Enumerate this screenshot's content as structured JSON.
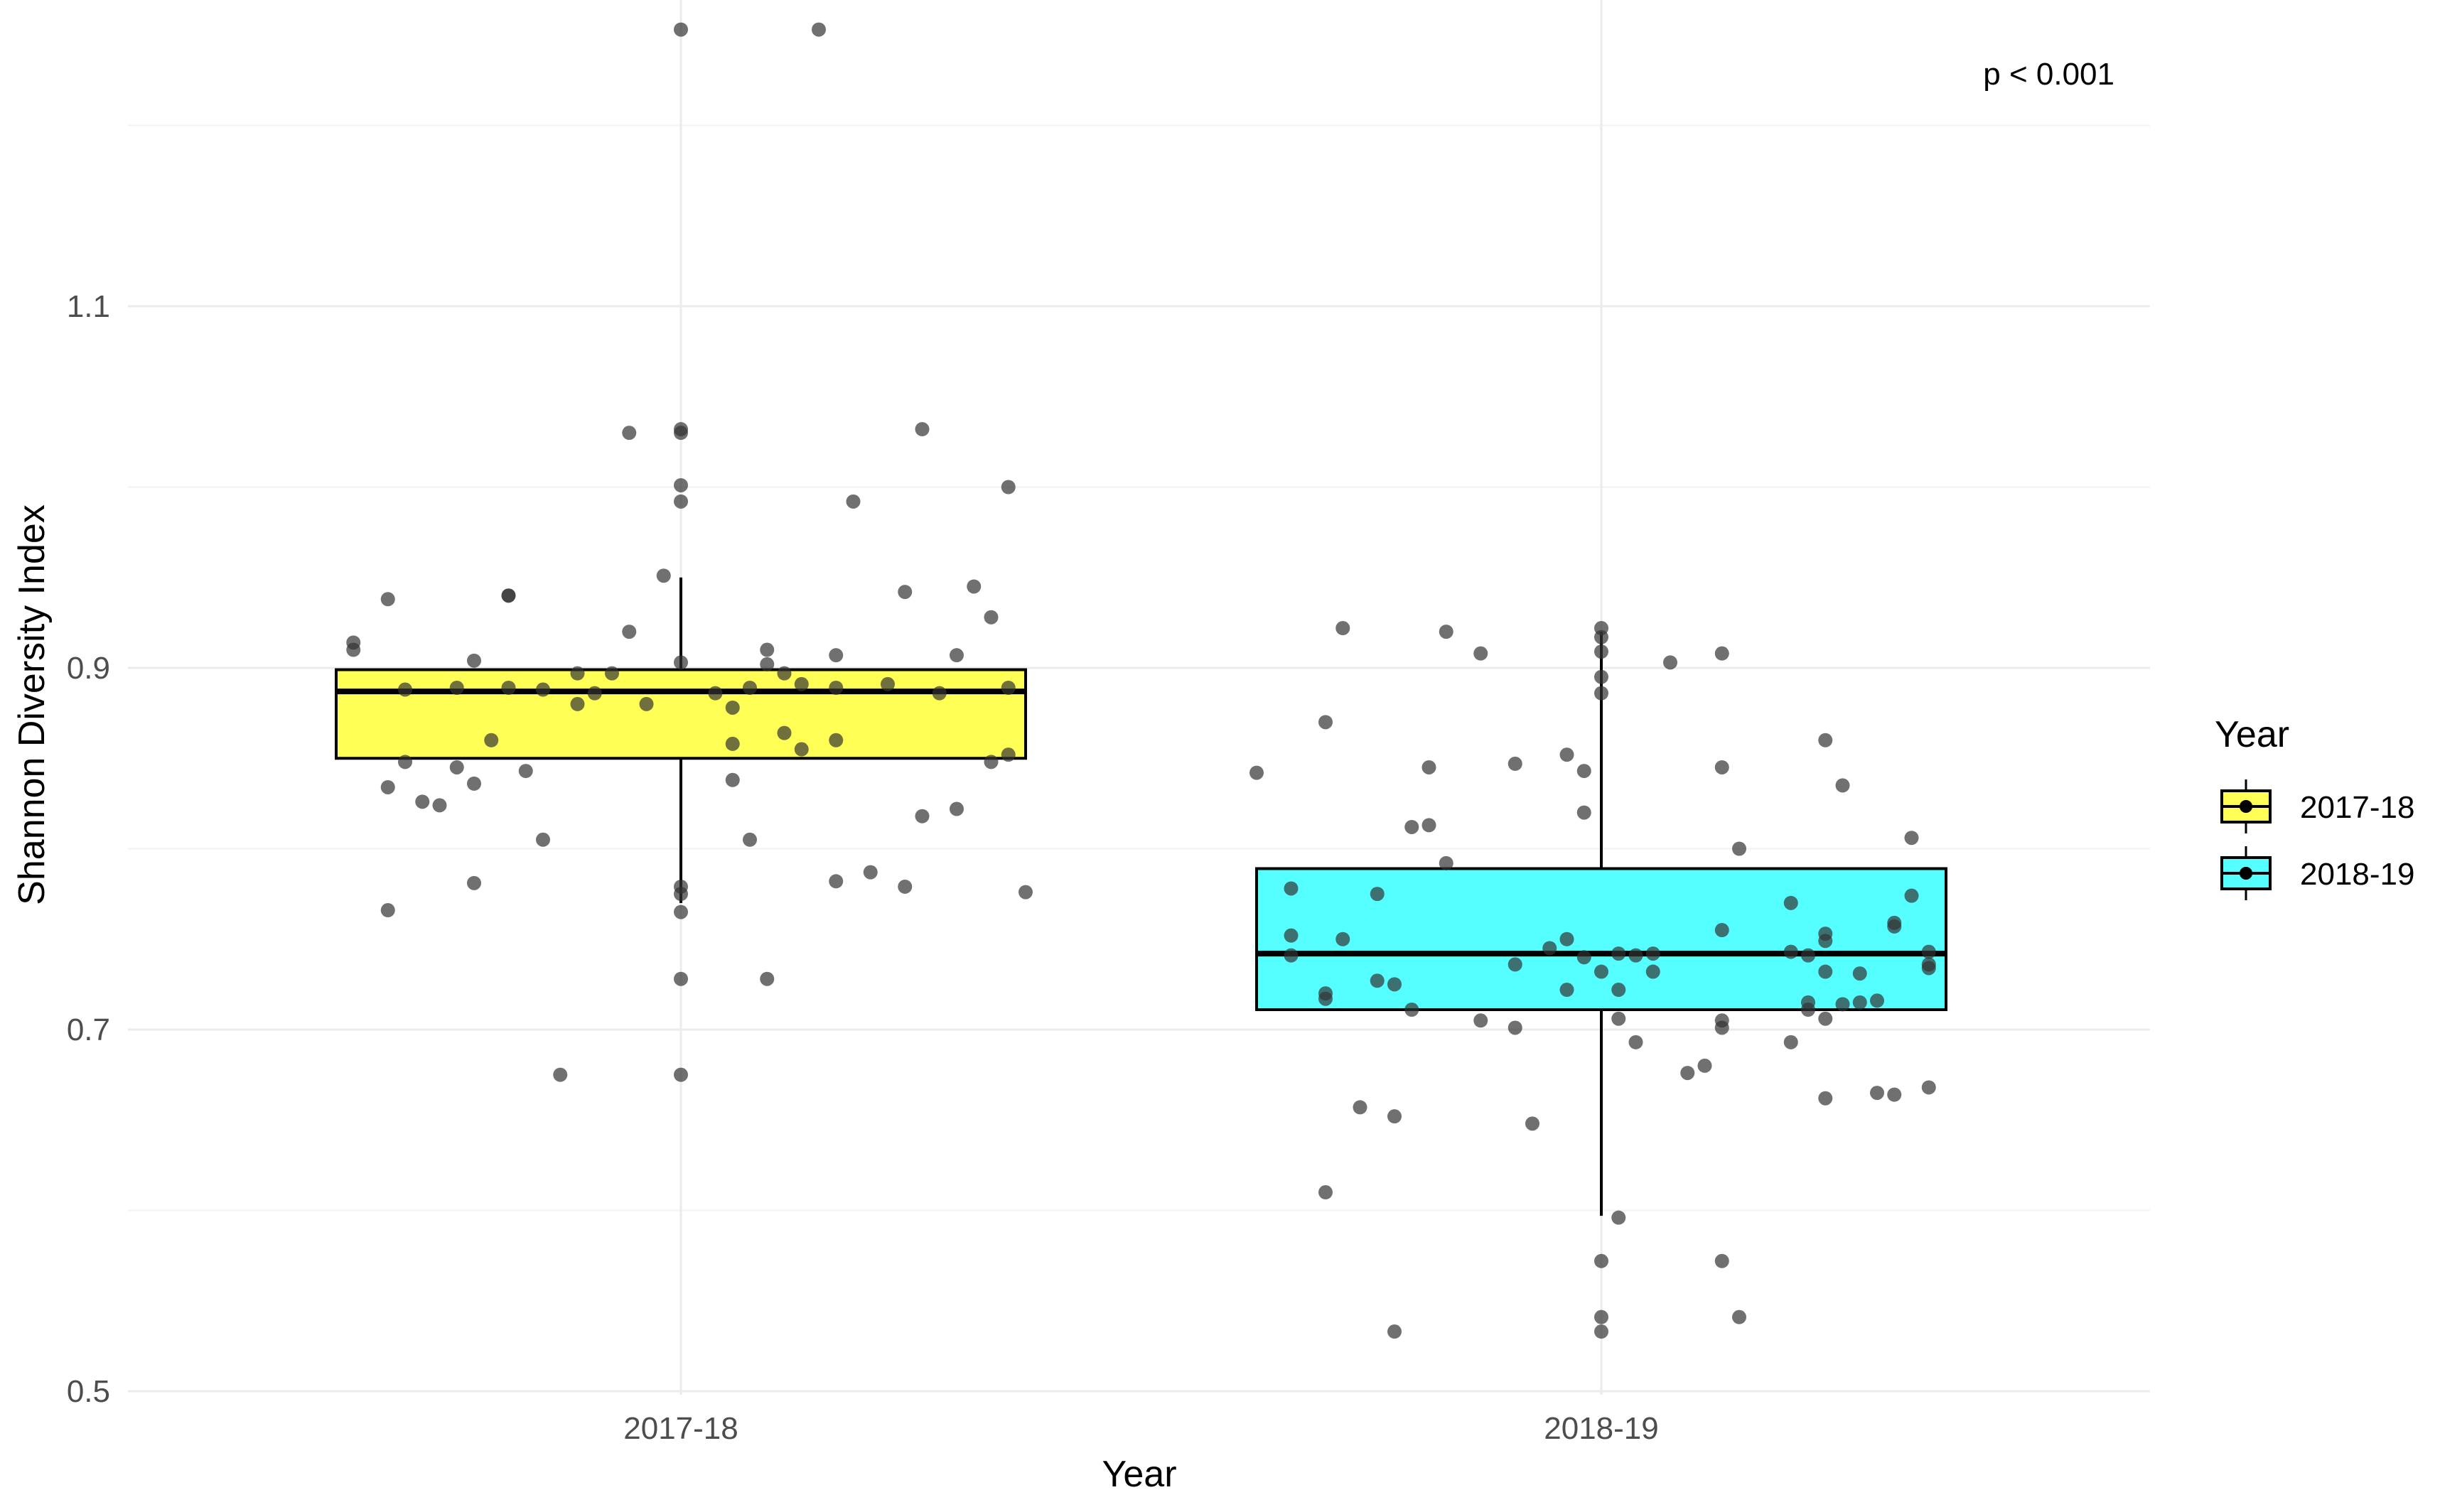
{
  "chart_data": {
    "type": "boxplot",
    "title": "",
    "xlabel": "Year",
    "ylabel": "Shannon Diversity Index",
    "ylim": [
      0.5,
      1.27
    ],
    "yticks": [
      0.5,
      0.7,
      0.9,
      1.1
    ],
    "ytick_labels": [
      "0.5",
      "0.7",
      "0.9",
      "1.1"
    ],
    "grid": true,
    "annotation": "p < 0.001",
    "legend": {
      "title": "Year",
      "position": "right",
      "entries": [
        {
          "label": "2017-18",
          "color": "#ffff55"
        },
        {
          "label": "2018-19",
          "color": "#55ffff"
        }
      ]
    },
    "categories": [
      "2017-18",
      "2018-19"
    ],
    "boxes": [
      {
        "category": "2017-18",
        "color": "#ffff55",
        "whisker_low": 0.77,
        "q1": 0.85,
        "median": 0.887,
        "q3": 0.899,
        "whisker_high": 0.95,
        "points": [
          [
            -0.0,
            1.253
          ],
          [
            0.08,
            1.253
          ],
          [
            -0.03,
            1.03
          ],
          [
            0.0,
            1.032
          ],
          [
            0.0,
            1.03
          ],
          [
            0.14,
            1.032
          ],
          [
            0.0,
            1.001
          ],
          [
            0.0,
            0.992
          ],
          [
            0.1,
            0.992
          ],
          [
            0.19,
            1.0
          ],
          [
            -0.01,
            0.951
          ],
          [
            -0.1,
            0.94
          ],
          [
            -0.1,
            0.94
          ],
          [
            -0.17,
            0.938
          ],
          [
            0.13,
            0.942
          ],
          [
            0.17,
            0.945
          ],
          [
            0.18,
            0.928
          ],
          [
            -0.19,
            0.914
          ],
          [
            -0.19,
            0.91
          ],
          [
            -0.03,
            0.92
          ],
          [
            0.05,
            0.91
          ],
          [
            0.09,
            0.907
          ],
          [
            0.16,
            0.907
          ],
          [
            -0.12,
            0.904
          ],
          [
            -0.06,
            0.897
          ],
          [
            -0.04,
            0.897
          ],
          [
            0.0,
            0.903
          ],
          [
            0.05,
            0.902
          ],
          [
            0.06,
            0.897
          ],
          [
            -0.16,
            0.888
          ],
          [
            -0.13,
            0.889
          ],
          [
            -0.1,
            0.889
          ],
          [
            -0.08,
            0.888
          ],
          [
            -0.05,
            0.886
          ],
          [
            0.02,
            0.886
          ],
          [
            0.04,
            0.889
          ],
          [
            0.07,
            0.891
          ],
          [
            0.09,
            0.889
          ],
          [
            0.12,
            0.891
          ],
          [
            0.15,
            0.886
          ],
          [
            0.19,
            0.889
          ],
          [
            -0.06,
            0.88
          ],
          [
            -0.02,
            0.88
          ],
          [
            0.03,
            0.878
          ],
          [
            -0.11,
            0.86
          ],
          [
            0.03,
            0.858
          ],
          [
            0.06,
            0.864
          ],
          [
            0.09,
            0.86
          ],
          [
            0.07,
            0.855
          ],
          [
            -0.16,
            0.848
          ],
          [
            -0.13,
            0.845
          ],
          [
            -0.09,
            0.843
          ],
          [
            0.03,
            0.838
          ],
          [
            0.18,
            0.848
          ],
          [
            0.19,
            0.852
          ],
          [
            -0.17,
            0.834
          ],
          [
            -0.15,
            0.826
          ],
          [
            -0.14,
            0.824
          ],
          [
            -0.12,
            0.836
          ],
          [
            0.14,
            0.818
          ],
          [
            0.16,
            0.822
          ],
          [
            -0.08,
            0.805
          ],
          [
            0.04,
            0.805
          ],
          [
            -0.12,
            0.781
          ],
          [
            0.0,
            0.779
          ],
          [
            0.0,
            0.775
          ],
          [
            0.09,
            0.782
          ],
          [
            0.11,
            0.787
          ],
          [
            0.13,
            0.779
          ],
          [
            0.2,
            0.776
          ],
          [
            -0.17,
            0.766
          ],
          [
            0.0,
            0.765
          ],
          [
            0.0,
            0.728
          ],
          [
            0.05,
            0.728
          ],
          [
            -0.07,
            0.675
          ],
          [
            0.0,
            0.675
          ]
        ]
      },
      {
        "category": "2018-19",
        "color": "#55ffff",
        "whisker_low": 0.597,
        "q1": 0.711,
        "median": 0.742,
        "q3": 0.789,
        "whisker_high": 0.92,
        "points": [
          [
            -0.15,
            0.922
          ],
          [
            -0.09,
            0.92
          ],
          [
            0.0,
            0.922
          ],
          [
            0.0,
            0.917
          ],
          [
            -0.07,
            0.908
          ],
          [
            0.0,
            0.909
          ],
          [
            0.07,
            0.908
          ],
          [
            0.04,
            0.903
          ],
          [
            0.0,
            0.895
          ],
          [
            0.0,
            0.886
          ],
          [
            -0.16,
            0.87
          ],
          [
            0.13,
            0.86
          ],
          [
            -0.2,
            0.842
          ],
          [
            -0.1,
            0.845
          ],
          [
            -0.05,
            0.847
          ],
          [
            -0.02,
            0.852
          ],
          [
            -0.01,
            0.843
          ],
          [
            0.07,
            0.845
          ],
          [
            0.14,
            0.835
          ],
          [
            -0.11,
            0.812
          ],
          [
            -0.1,
            0.813
          ],
          [
            -0.01,
            0.82
          ],
          [
            0.08,
            0.8
          ],
          [
            0.18,
            0.806
          ],
          [
            -0.09,
            0.792
          ],
          [
            -0.18,
            0.778
          ],
          [
            -0.13,
            0.775
          ],
          [
            0.11,
            0.77
          ],
          [
            0.18,
            0.774
          ],
          [
            0.17,
            0.757
          ],
          [
            0.17,
            0.759
          ],
          [
            -0.18,
            0.752
          ],
          [
            -0.15,
            0.75
          ],
          [
            -0.02,
            0.75
          ],
          [
            0.07,
            0.755
          ],
          [
            0.13,
            0.753
          ],
          [
            0.13,
            0.749
          ],
          [
            -0.18,
            0.741
          ],
          [
            -0.03,
            0.745
          ],
          [
            -0.01,
            0.74
          ],
          [
            0.01,
            0.742
          ],
          [
            0.02,
            0.741
          ],
          [
            0.03,
            0.742
          ],
          [
            0.11,
            0.743
          ],
          [
            0.12,
            0.741
          ],
          [
            0.19,
            0.743
          ],
          [
            0.19,
            0.736
          ],
          [
            0.19,
            0.734
          ],
          [
            -0.05,
            0.736
          ],
          [
            0.0,
            0.732
          ],
          [
            0.03,
            0.732
          ],
          [
            0.13,
            0.732
          ],
          [
            0.15,
            0.731
          ],
          [
            -0.13,
            0.727
          ],
          [
            -0.12,
            0.725
          ],
          [
            -0.16,
            0.72
          ],
          [
            -0.16,
            0.717
          ],
          [
            -0.02,
            0.722
          ],
          [
            0.01,
            0.722
          ],
          [
            0.12,
            0.715
          ],
          [
            0.14,
            0.714
          ],
          [
            0.15,
            0.715
          ],
          [
            0.16,
            0.716
          ],
          [
            -0.11,
            0.711
          ],
          [
            0.12,
            0.711
          ],
          [
            0.13,
            0.706
          ],
          [
            -0.07,
            0.705
          ],
          [
            -0.05,
            0.701
          ],
          [
            0.01,
            0.706
          ],
          [
            0.07,
            0.701
          ],
          [
            0.07,
            0.705
          ],
          [
            0.11,
            0.693
          ],
          [
            0.02,
            0.693
          ],
          [
            0.06,
            0.68
          ],
          [
            0.05,
            0.676
          ],
          [
            0.13,
            0.662
          ],
          [
            0.16,
            0.665
          ],
          [
            0.17,
            0.664
          ],
          [
            0.19,
            0.668
          ],
          [
            -0.14,
            0.657
          ],
          [
            -0.12,
            0.652
          ],
          [
            -0.04,
            0.648
          ],
          [
            -0.16,
            0.61
          ],
          [
            0.01,
            0.596
          ],
          [
            0.0,
            0.572
          ],
          [
            0.07,
            0.572
          ],
          [
            0.0,
            0.541
          ],
          [
            0.08,
            0.541
          ],
          [
            -0.12,
            0.533
          ],
          [
            0.0,
            0.533
          ]
        ]
      }
    ]
  },
  "colors": {
    "point": "#333333",
    "whisker": "#000000",
    "grid_major": "#ebebeb",
    "grid_minor": "#f2f2f2"
  }
}
